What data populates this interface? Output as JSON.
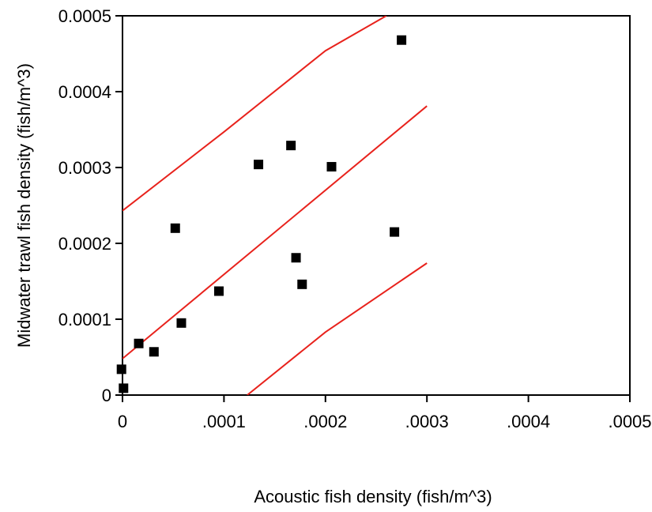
{
  "chart_data": {
    "type": "scatter",
    "xlabel": "Acoustic fish density (fish/m^3)",
    "ylabel": "Midwater trawl fish density (fish/m^3)",
    "xlim": [
      0,
      0.0005
    ],
    "ylim": [
      0,
      0.0005
    ],
    "x_tick_labels": [
      "0",
      ".0001",
      ".0002",
      ".0003",
      ".0004",
      ".0005"
    ],
    "x_tick_values": [
      0,
      0.0001,
      0.0002,
      0.0003,
      0.0004,
      0.0005
    ],
    "y_tick_labels": [
      "0",
      "0.0001",
      "0.0002",
      "0.0003",
      "0.0004",
      "0.0005"
    ],
    "y_tick_values": [
      0,
      0.0001,
      0.0002,
      0.0003,
      0.0004,
      0.0005
    ],
    "points": [
      {
        "x": -1e-06,
        "y": 3.4e-05
      },
      {
        "x": 1e-06,
        "y": 9e-06
      },
      {
        "x": 1.6e-05,
        "y": 6.8e-05
      },
      {
        "x": 3.1e-05,
        "y": 5.7e-05
      },
      {
        "x": 5.2e-05,
        "y": 0.00022
      },
      {
        "x": 5.8e-05,
        "y": 9.5e-05
      },
      {
        "x": 9.5e-05,
        "y": 0.000137
      },
      {
        "x": 0.000134,
        "y": 0.000304
      },
      {
        "x": 0.000166,
        "y": 0.000329
      },
      {
        "x": 0.000171,
        "y": 0.000181
      },
      {
        "x": 0.000177,
        "y": 0.000146
      },
      {
        "x": 0.000206,
        "y": 0.000301
      },
      {
        "x": 0.000268,
        "y": 0.000215
      },
      {
        "x": 0.000275,
        "y": 0.000468
      }
    ],
    "lines": [
      {
        "role": "upper",
        "color": "#e8221c",
        "x": [
          0,
          0.0001,
          0.0002,
          0.00026
        ],
        "y": [
          0.000243,
          0.000347,
          0.000454,
          0.0005
        ]
      },
      {
        "role": "fit",
        "color": "#e8221c",
        "x": [
          0,
          0.0003
        ],
        "y": [
          4.8e-05,
          0.000381
        ]
      },
      {
        "role": "lower",
        "color": "#e8221c",
        "x": [
          0.000123,
          0.0002,
          0.0003
        ],
        "y": [
          0,
          8.3e-05,
          0.000174
        ]
      }
    ],
    "marker_color": "#000000",
    "grid": false
  }
}
